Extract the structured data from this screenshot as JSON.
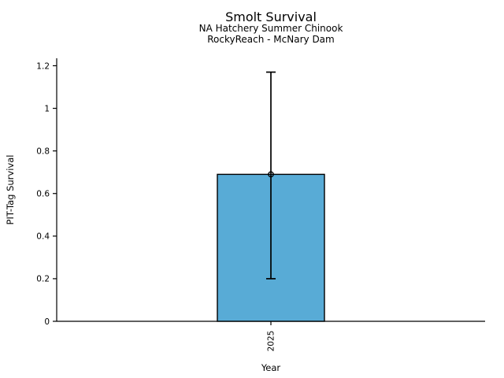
{
  "chart_data": {
    "type": "bar",
    "title": "Smolt Survival",
    "subtitle1": "NA Hatchery Summer Chinook",
    "subtitle2": "RockyReach - McNary Dam",
    "xlabel": "Year",
    "ylabel": "PIT-Tag Survival",
    "categories": [
      "2025"
    ],
    "values": [
      0.69
    ],
    "error_low": [
      0.2
    ],
    "error_high": [
      1.17
    ],
    "ytick_values": [
      0,
      0.2,
      0.4,
      0.6,
      0.8,
      1,
      1.2
    ],
    "ytick_labels": [
      "0",
      "0.2",
      "0.4",
      "0.6",
      "0.8",
      "1",
      "1.2"
    ],
    "ylim": [
      0,
      1.235
    ],
    "xtick_rotation": 90,
    "grid": false,
    "legend": "none",
    "marker": "open-circle",
    "colors": {
      "bar_fill": "#58abd6",
      "bar_edge": "#000000",
      "error_bar": "#000000",
      "axis": "#000000",
      "text": "#000000",
      "background": "#ffffff"
    }
  }
}
